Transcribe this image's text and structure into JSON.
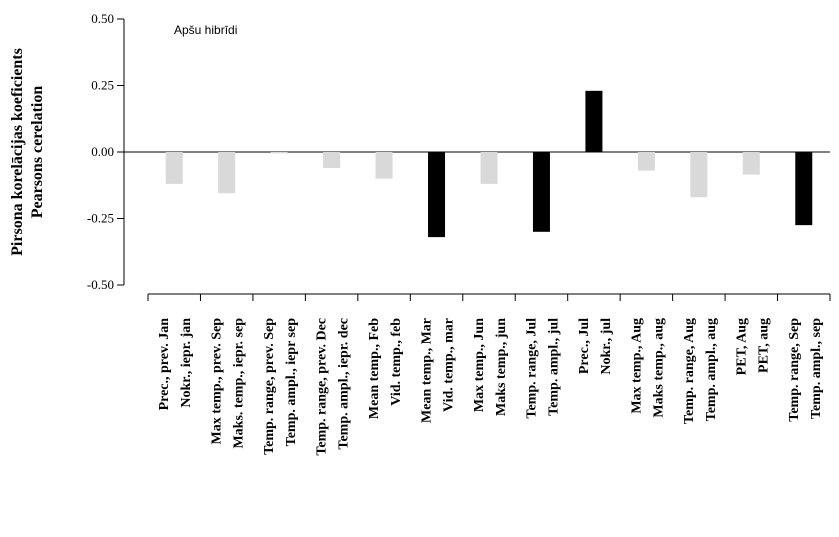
{
  "chart_data": {
    "type": "bar",
    "annotation": "Apšu hibrīdi",
    "ylabel_lines": [
      "Pirsona korelācijas koeficients",
      "Pearsons cerelation"
    ],
    "ylim": [
      -0.5,
      0.5
    ],
    "yticks": [
      0.5,
      0.25,
      0.0,
      -0.25,
      -0.5
    ],
    "ytick_labels": [
      "0.50",
      "0.25",
      "0.00",
      "-0.25",
      "-0.50"
    ],
    "grid": false,
    "significant_color": "#000000",
    "nonsignificant_color": "#d9d9d9",
    "categories": [
      "Prec., prev. Jan",
      "Nokr., iepr. jan",
      "Max temp., prev. Sep",
      "Maks. temp., iepr. sep",
      "Temp. range, prev. Sep",
      "Temp. ampl., iepr sep",
      "Temp. range, prev. Dec",
      "Temp. ampl., iepr. dec",
      "Mean temp., Feb",
      "Vid. temp., feb",
      "Mean temp., Mar",
      "Vid. temp., mar",
      "Max temp., Jun",
      "Maks temp., jun",
      "Temp. range, Jul",
      "Temp. ampl., jul",
      "Prec., Jul",
      "Nokr., jul",
      "Max temp., Aug",
      "Maks temp., aug",
      "Temp. range, Aug",
      "Temp. ampl., aug",
      "PET, Aug",
      "PET, aug",
      "Temp. range, Sep",
      "Temp. ampl., sep"
    ],
    "bars": [
      {
        "value": -0.12,
        "significant": false
      },
      {
        "value": -0.155,
        "significant": false
      },
      {
        "value": -0.005,
        "significant": false
      },
      {
        "value": -0.06,
        "significant": false
      },
      {
        "value": -0.1,
        "significant": false
      },
      {
        "value": -0.32,
        "significant": true
      },
      {
        "value": -0.12,
        "significant": false
      },
      {
        "value": -0.3,
        "significant": true
      },
      {
        "value": 0.23,
        "significant": true
      },
      {
        "value": -0.07,
        "significant": false
      },
      {
        "value": -0.17,
        "significant": false
      },
      {
        "value": -0.085,
        "significant": false
      },
      {
        "value": -0.275,
        "significant": true
      }
    ]
  }
}
